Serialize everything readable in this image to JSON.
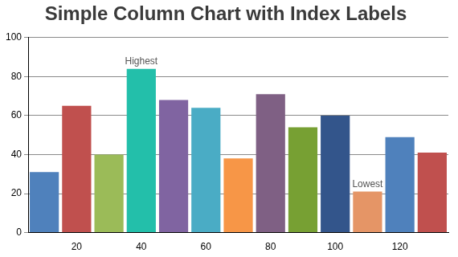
{
  "chart_data": {
    "type": "bar",
    "title": "Simple Column Chart with Index Labels",
    "x": [
      10,
      20,
      30,
      40,
      50,
      60,
      70,
      80,
      90,
      100,
      110,
      120,
      130
    ],
    "values": [
      31,
      65,
      40,
      84,
      68,
      64,
      38,
      71,
      54,
      60,
      21,
      49,
      41
    ],
    "colors": [
      "#4f81bc",
      "#c0504e",
      "#9bbb58",
      "#23bfaa",
      "#8064a1",
      "#4aacc5",
      "#f79647",
      "#7f6084",
      "#77a033",
      "#33558b",
      "#e59566",
      "#4f81bc",
      "#c0504e"
    ],
    "xlim": [
      5,
      135
    ],
    "xticks": [
      20,
      40,
      60,
      80,
      100,
      120
    ],
    "ylim": [
      0,
      100
    ],
    "yticks": [
      0,
      20,
      40,
      60,
      80,
      100
    ],
    "grid": true,
    "annotations": [
      {
        "x": 40,
        "text": "Highest"
      },
      {
        "x": 110,
        "text": "Lowest"
      }
    ]
  }
}
